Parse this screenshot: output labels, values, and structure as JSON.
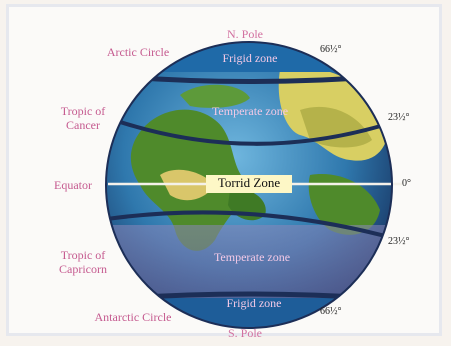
{
  "poles": {
    "north": "N. Pole",
    "south": "S. Pole"
  },
  "left_labels": {
    "arctic": "Arctic Circle",
    "tropic_cancer_l1": "Tropic of",
    "tropic_cancer_l2": "Cancer",
    "equator": "Equator",
    "tropic_capricorn_l1": "Tropic of",
    "tropic_capricorn_l2": "Capricorn",
    "antarctic": "Antarctic Circle"
  },
  "zones": {
    "north_frigid": "Frigid zone",
    "north_temperate": "Temperate zone",
    "torrid": "Torrid Zone",
    "south_temperate": "Temperate zone",
    "south_frigid": "Frigid zone"
  },
  "degrees": {
    "arctic": "66½°",
    "cancer": "23½°",
    "equator": "0°",
    "capricorn": "23½°",
    "antarctic": "66½°"
  },
  "colors": {
    "label_pink": "#c55a8f",
    "zone_text": "#f3c9e6",
    "torrid_bg": "#fdf7c6",
    "ocean": "#2f7fb0",
    "land_green": "#4f8a2b",
    "land_sand": "#d9c66a",
    "band": "#1c2e57"
  }
}
